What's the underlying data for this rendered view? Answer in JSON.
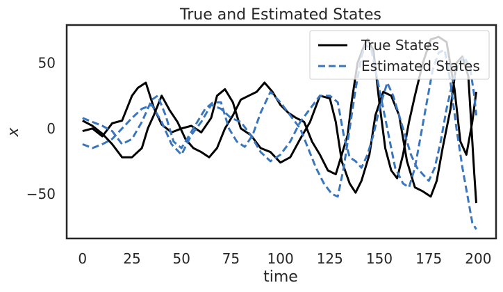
{
  "chart_data": {
    "type": "line",
    "title": "True and Estimated States",
    "xlabel": "time",
    "ylabel": "x",
    "xlim": [
      -8,
      209
    ],
    "ylim": [
      -84,
      79
    ],
    "xticks": [
      0,
      25,
      50,
      75,
      100,
      125,
      150,
      175,
      200
    ],
    "yticks": [
      -50,
      0,
      50
    ],
    "ytick_labels": [
      "−50",
      "0",
      "50"
    ],
    "grid": false,
    "legend_position": "top-right",
    "series": [
      {
        "name": "True States",
        "role": "true",
        "color": "#000000",
        "dash": "solid",
        "points": [
          [
            0,
            -2
          ],
          [
            5,
            0
          ],
          [
            10,
            -6
          ],
          [
            15,
            4
          ],
          [
            20,
            6
          ],
          [
            25,
            25
          ],
          [
            28,
            31
          ],
          [
            32,
            35
          ],
          [
            36,
            16
          ],
          [
            40,
            3
          ],
          [
            45,
            -3
          ],
          [
            50,
            0
          ],
          [
            55,
            2
          ],
          [
            60,
            -3
          ],
          [
            65,
            8
          ],
          [
            68,
            25
          ],
          [
            72,
            30
          ],
          [
            76,
            20
          ],
          [
            80,
            0
          ],
          [
            85,
            -5
          ],
          [
            90,
            -15
          ],
          [
            95,
            -18
          ],
          [
            100,
            -26
          ],
          [
            105,
            -22
          ],
          [
            110,
            -8
          ],
          [
            115,
            5
          ],
          [
            120,
            25
          ],
          [
            125,
            23
          ],
          [
            128,
            5
          ],
          [
            131,
            -25
          ],
          [
            135,
            -42
          ],
          [
            138,
            -49
          ],
          [
            141,
            -40
          ],
          [
            145,
            -20
          ],
          [
            148,
            10
          ],
          [
            152,
            28
          ],
          [
            156,
            25
          ],
          [
            160,
            10
          ],
          [
            164,
            -25
          ],
          [
            168,
            -45
          ],
          [
            172,
            -48
          ],
          [
            176,
            -52
          ],
          [
            179,
            -40
          ],
          [
            182,
            -15
          ],
          [
            186,
            15
          ],
          [
            189,
            50
          ],
          [
            192,
            55
          ],
          [
            195,
            40
          ],
          [
            198,
            -35
          ],
          [
            199,
            -57
          ]
        ]
      },
      {
        "name": "",
        "role": "true",
        "color": "#000000",
        "dash": "solid",
        "points": [
          [
            0,
            6
          ],
          [
            5,
            2
          ],
          [
            10,
            -4
          ],
          [
            15,
            -12
          ],
          [
            20,
            -22
          ],
          [
            25,
            -22
          ],
          [
            30,
            -15
          ],
          [
            33,
            0
          ],
          [
            36,
            10
          ],
          [
            40,
            25
          ],
          [
            44,
            14
          ],
          [
            48,
            5
          ],
          [
            52,
            -8
          ],
          [
            56,
            -15
          ],
          [
            60,
            -18
          ],
          [
            64,
            -22
          ],
          [
            68,
            -15
          ],
          [
            72,
            0
          ],
          [
            76,
            10
          ],
          [
            80,
            22
          ],
          [
            84,
            25
          ],
          [
            88,
            28
          ],
          [
            92,
            35
          ],
          [
            96,
            28
          ],
          [
            100,
            18
          ],
          [
            104,
            12
          ],
          [
            108,
            8
          ],
          [
            112,
            5
          ],
          [
            116,
            -10
          ],
          [
            120,
            -20
          ],
          [
            124,
            -32
          ],
          [
            128,
            -35
          ],
          [
            131,
            -20
          ],
          [
            134,
            -5
          ],
          [
            136,
            20
          ],
          [
            139,
            50
          ],
          [
            142,
            62
          ],
          [
            144,
            68
          ],
          [
            147,
            60
          ],
          [
            150,
            20
          ],
          [
            153,
            -15
          ],
          [
            156,
            -32
          ],
          [
            159,
            -38
          ],
          [
            162,
            -20
          ],
          [
            165,
            5
          ],
          [
            168,
            25
          ],
          [
            172,
            50
          ],
          [
            176,
            68
          ],
          [
            180,
            70
          ],
          [
            184,
            66
          ],
          [
            188,
            30
          ],
          [
            191,
            -10
          ],
          [
            194,
            -20
          ],
          [
            197,
            5
          ],
          [
            199,
            28
          ]
        ]
      },
      {
        "name": "Estimated States",
        "role": "estimated",
        "color": "#3a76bd",
        "dash": "dashed",
        "points": [
          [
            0,
            8
          ],
          [
            5,
            5
          ],
          [
            10,
            2
          ],
          [
            15,
            -2
          ],
          [
            20,
            -12
          ],
          [
            25,
            -8
          ],
          [
            30,
            5
          ],
          [
            35,
            22
          ],
          [
            38,
            25
          ],
          [
            42,
            10
          ],
          [
            46,
            -10
          ],
          [
            50,
            -15
          ],
          [
            54,
            -5
          ],
          [
            58,
            5
          ],
          [
            62,
            15
          ],
          [
            66,
            20
          ],
          [
            70,
            20
          ],
          [
            74,
            0
          ],
          [
            78,
            -10
          ],
          [
            82,
            -14
          ],
          [
            86,
            -5
          ],
          [
            90,
            12
          ],
          [
            95,
            28
          ],
          [
            100,
            20
          ],
          [
            105,
            10
          ],
          [
            110,
            0
          ],
          [
            114,
            -15
          ],
          [
            118,
            -30
          ],
          [
            122,
            -42
          ],
          [
            126,
            -50
          ],
          [
            129,
            -52
          ],
          [
            132,
            -30
          ],
          [
            135,
            0
          ],
          [
            138,
            30
          ],
          [
            141,
            55
          ],
          [
            143,
            64
          ],
          [
            146,
            60
          ],
          [
            150,
            30
          ],
          [
            154,
            0
          ],
          [
            158,
            -30
          ],
          [
            162,
            -42
          ],
          [
            165,
            -45
          ],
          [
            168,
            -30
          ],
          [
            171,
            -5
          ],
          [
            174,
            20
          ],
          [
            177,
            45
          ],
          [
            180,
            58
          ],
          [
            183,
            60
          ],
          [
            186,
            35
          ],
          [
            189,
            0
          ],
          [
            192,
            -30
          ],
          [
            195,
            -55
          ],
          [
            197,
            -72
          ],
          [
            199,
            -77
          ]
        ]
      },
      {
        "name": "",
        "role": "estimated",
        "color": "#3a76bd",
        "dash": "dashed",
        "points": [
          [
            0,
            -12
          ],
          [
            5,
            -15
          ],
          [
            10,
            -12
          ],
          [
            15,
            -8
          ],
          [
            20,
            0
          ],
          [
            25,
            8
          ],
          [
            30,
            15
          ],
          [
            35,
            18
          ],
          [
            40,
            5
          ],
          [
            45,
            -12
          ],
          [
            50,
            -20
          ],
          [
            55,
            -5
          ],
          [
            60,
            5
          ],
          [
            65,
            18
          ],
          [
            70,
            15
          ],
          [
            75,
            8
          ],
          [
            80,
            5
          ],
          [
            85,
            -5
          ],
          [
            90,
            -18
          ],
          [
            95,
            -25
          ],
          [
            100,
            -20
          ],
          [
            105,
            -10
          ],
          [
            110,
            5
          ],
          [
            115,
            15
          ],
          [
            120,
            25
          ],
          [
            125,
            25
          ],
          [
            129,
            20
          ],
          [
            132,
            -5
          ],
          [
            135,
            -22
          ],
          [
            138,
            -25
          ],
          [
            141,
            -30
          ],
          [
            144,
            -20
          ],
          [
            147,
            -5
          ],
          [
            150,
            15
          ],
          [
            154,
            35
          ],
          [
            157,
            25
          ],
          [
            160,
            10
          ],
          [
            163,
            -5
          ],
          [
            166,
            -20
          ],
          [
            169,
            -30
          ],
          [
            172,
            -35
          ],
          [
            175,
            -40
          ],
          [
            178,
            -30
          ],
          [
            181,
            -10
          ],
          [
            184,
            15
          ],
          [
            187,
            35
          ],
          [
            190,
            50
          ],
          [
            193,
            55
          ],
          [
            196,
            45
          ],
          [
            198,
            25
          ],
          [
            199,
            10
          ]
        ]
      }
    ]
  }
}
